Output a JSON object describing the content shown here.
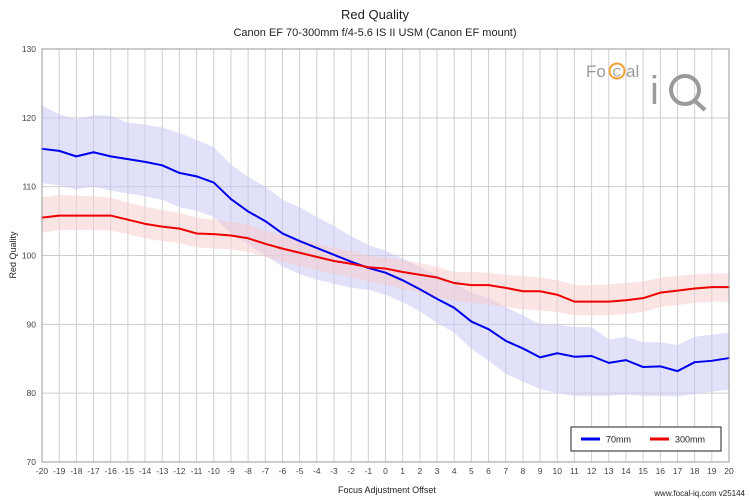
{
  "colors": {
    "series_70": "#0000ee",
    "series_300": "#ee0000",
    "band_70": "#c8c8f5",
    "band_300": "#f8cdcd",
    "grid": "#cfcfcf"
  },
  "logo": {
    "text": "FoCal iQ"
  },
  "credit": "www.focal-iq.com  v25144",
  "chart_data": {
    "type": "line",
    "title": "Red Quality",
    "subtitle": "Canon EF 70-300mm f/4-5.6 IS II USM (Canon EF mount)",
    "xlabel": "Focus Adjustment Offset",
    "ylabel": "Red Quality",
    "xlim": [
      -20,
      20
    ],
    "ylim": [
      70,
      130
    ],
    "yticks": [
      70,
      80,
      90,
      100,
      110,
      120,
      130
    ],
    "grid": true,
    "legend_position": "bottom-right",
    "x": [
      -20,
      -19,
      -18,
      -17,
      -16,
      -15,
      -14,
      -13,
      -12,
      -11,
      -10,
      -9,
      -8,
      -7,
      -6,
      -5,
      -4,
      -3,
      -2,
      -1,
      0,
      1,
      2,
      3,
      4,
      5,
      6,
      7,
      8,
      9,
      10,
      11,
      12,
      13,
      14,
      15,
      16,
      17,
      18,
      19,
      20
    ],
    "series": [
      {
        "name": "70mm",
        "values": [
          115.5,
          115.2,
          114.4,
          115.0,
          114.4,
          114.0,
          113.6,
          113.1,
          112.0,
          111.5,
          110.6,
          108.2,
          106.4,
          105.0,
          103.2,
          102.1,
          101.1,
          100.1,
          99.1,
          98.2,
          97.5,
          96.4,
          95.1,
          93.7,
          92.4,
          90.4,
          89.3,
          87.6,
          86.5,
          85.2,
          85.8,
          85.3,
          85.4,
          84.4,
          84.8,
          83.8,
          83.9,
          83.2,
          84.5,
          84.7,
          85.1
        ],
        "lower": [
          110.5,
          110.2,
          109.6,
          110.0,
          109.4,
          109.0,
          108.6,
          108.1,
          107.0,
          106.5,
          105.6,
          103.2,
          101.6,
          100.0,
          98.4,
          97.3,
          96.5,
          95.9,
          95.3,
          95.0,
          94.3,
          93.2,
          91.9,
          90.2,
          88.8,
          86.4,
          84.7,
          82.8,
          81.7,
          80.6,
          80.0,
          79.6,
          79.6,
          79.6,
          79.8,
          79.6,
          79.6,
          79.5,
          79.9,
          80.2,
          80.5
        ],
        "upper": [
          121.8,
          120.5,
          119.8,
          120.4,
          120.3,
          119.3,
          119.0,
          118.6,
          117.8,
          116.8,
          115.7,
          113.2,
          111.4,
          110.0,
          108.1,
          107.0,
          105.6,
          104.3,
          102.8,
          101.5,
          100.7,
          99.6,
          98.3,
          97.1,
          96.0,
          94.6,
          93.9,
          92.5,
          91.3,
          90.0,
          90.0,
          89.6,
          89.6,
          87.8,
          88.2,
          87.4,
          87.4,
          87.0,
          88.2,
          88.5,
          88.8
        ]
      },
      {
        "name": "300mm",
        "values": [
          105.5,
          105.8,
          105.8,
          105.8,
          105.8,
          105.2,
          104.6,
          104.2,
          103.9,
          103.2,
          103.1,
          102.9,
          102.5,
          101.7,
          101.0,
          100.4,
          99.8,
          99.2,
          98.8,
          98.3,
          98.1,
          97.6,
          97.2,
          96.8,
          96.0,
          95.7,
          95.7,
          95.3,
          94.8,
          94.8,
          94.3,
          93.3,
          93.3,
          93.3,
          93.5,
          93.8,
          94.6,
          94.9,
          95.2,
          95.4,
          95.4
        ],
        "lower": [
          103.3,
          103.7,
          103.7,
          103.7,
          103.6,
          103.1,
          102.5,
          102.1,
          101.8,
          101.2,
          101.0,
          100.9,
          100.5,
          99.8,
          99.1,
          98.5,
          97.9,
          97.3,
          96.8,
          96.2,
          95.8,
          95.1,
          94.6,
          94.0,
          93.4,
          93.1,
          92.9,
          92.5,
          92.2,
          92.0,
          91.8,
          91.3,
          91.3,
          91.3,
          91.5,
          91.8,
          92.5,
          92.8,
          93.1,
          93.3,
          93.3
        ],
        "upper": [
          108.5,
          108.8,
          108.7,
          108.6,
          108.4,
          107.7,
          107.1,
          106.6,
          106.2,
          105.5,
          105.2,
          104.9,
          104.5,
          103.6,
          102.9,
          102.3,
          101.8,
          101.1,
          100.6,
          100.0,
          99.7,
          99.3,
          98.9,
          98.4,
          97.6,
          97.6,
          97.5,
          97.2,
          97.0,
          96.8,
          96.4,
          95.7,
          95.7,
          95.8,
          96.0,
          96.2,
          96.8,
          97.0,
          97.3,
          97.4,
          97.4
        ]
      }
    ]
  }
}
